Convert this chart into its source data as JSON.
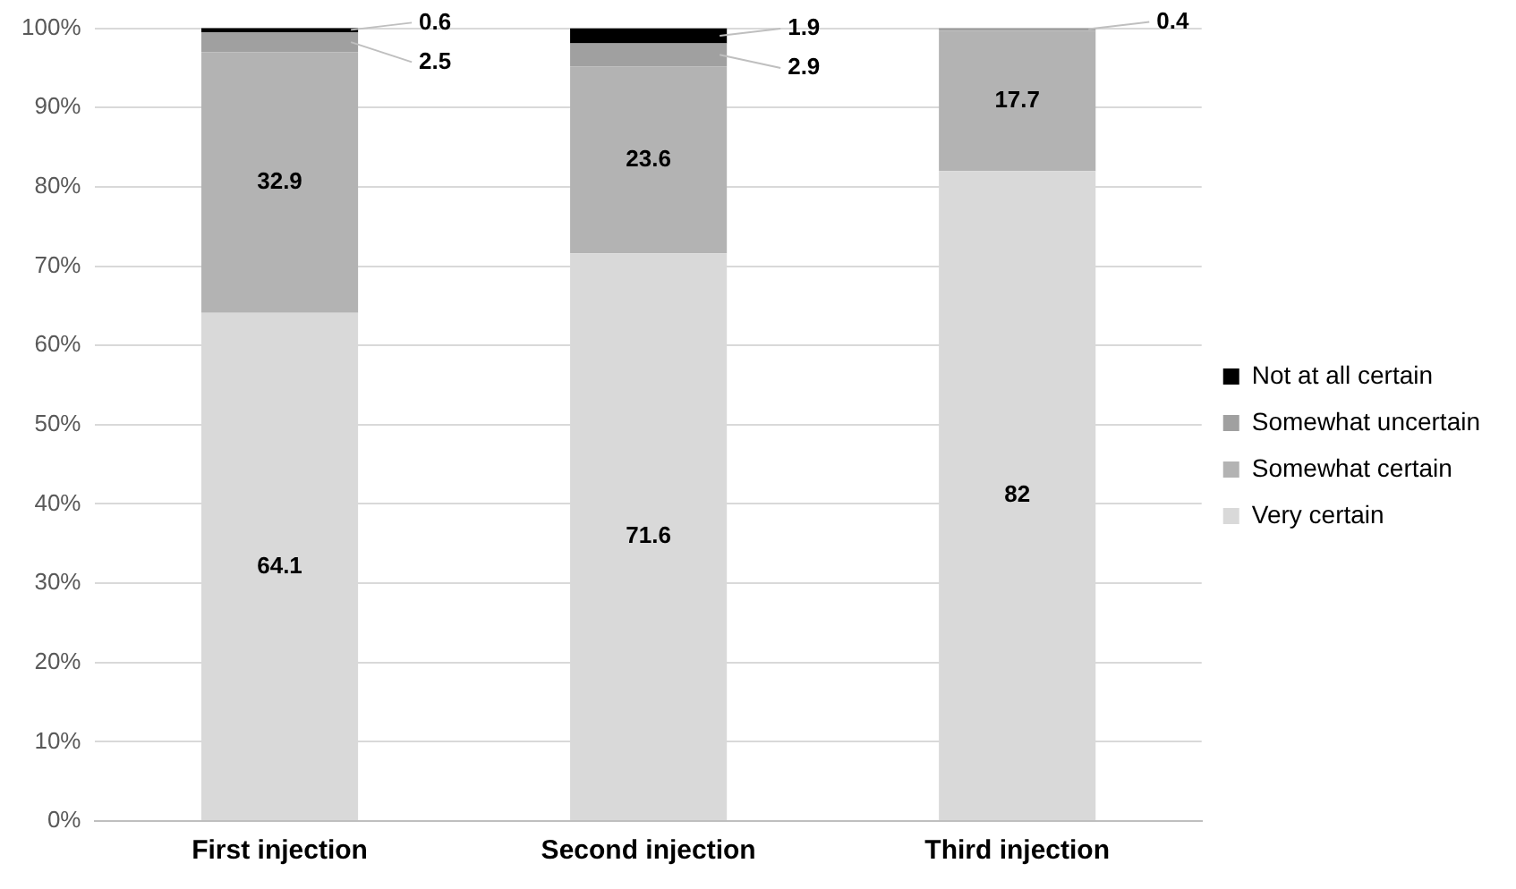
{
  "chart_data": {
    "type": "bar",
    "stacked": true,
    "categories": [
      "First injection",
      "Second injection",
      "Third injection"
    ],
    "series": [
      {
        "name": "Very certain",
        "color": "#d9d9d9",
        "values": [
          64.1,
          71.6,
          82
        ]
      },
      {
        "name": "Somewhat certain",
        "color": "#b3b3b3",
        "values": [
          32.9,
          23.6,
          17.7
        ]
      },
      {
        "name": "Somewhat uncertain",
        "color": "#a0a0a0",
        "values": [
          2.5,
          2.9,
          0.4
        ]
      },
      {
        "name": "Not at all certain",
        "color": "#000000",
        "values": [
          0.6,
          1.9,
          null
        ]
      }
    ],
    "ylim": [
      0,
      100
    ],
    "yticks": [
      {
        "value": 0,
        "label": "0%"
      },
      {
        "value": 10,
        "label": "10%"
      },
      {
        "value": 20,
        "label": "20%"
      },
      {
        "value": 30,
        "label": "30%"
      },
      {
        "value": 40,
        "label": "40%"
      },
      {
        "value": 50,
        "label": "50%"
      },
      {
        "value": 60,
        "label": "60%"
      },
      {
        "value": 70,
        "label": "70%"
      },
      {
        "value": 80,
        "label": "80%"
      },
      {
        "value": 90,
        "label": "90%"
      },
      {
        "value": 100,
        "label": "100%"
      }
    ],
    "grid": "y",
    "legend": "right",
    "data_labels": true
  }
}
